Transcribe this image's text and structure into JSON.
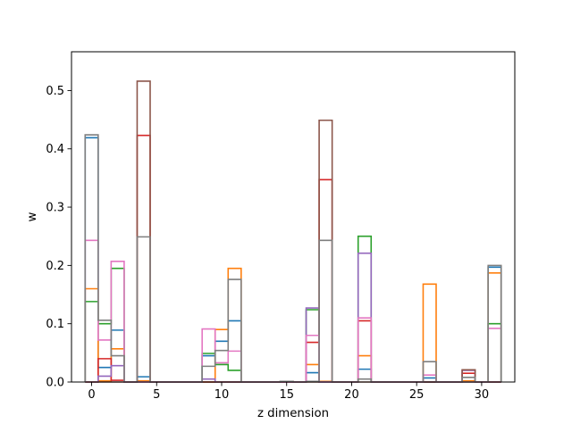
{
  "chart_data": {
    "type": "step-histogram",
    "title": "",
    "xlabel": "z dimension",
    "ylabel": "w",
    "xlim": [
      -1.55,
      32.55
    ],
    "ylim": [
      0,
      0.5665
    ],
    "xticks": [
      0,
      5,
      10,
      15,
      20,
      25,
      30
    ],
    "yticks": [
      0.0,
      0.1,
      0.2,
      0.3,
      0.4,
      0.5
    ],
    "ytick_labels": [
      "0.0",
      "0.1",
      "0.2",
      "0.3",
      "0.4",
      "0.5"
    ],
    "grid": false,
    "bins": [
      0,
      1,
      2,
      4,
      9,
      10,
      11,
      15,
      17,
      18,
      21,
      26,
      29,
      31
    ],
    "bin_width": 1,
    "series": [
      {
        "color": "#1f77b4",
        "values": {
          "0": 0.419,
          "1": 0.025,
          "2": 0.089,
          "4": 0.009,
          "9": 0.045,
          "10": 0.07,
          "11": 0.105,
          "17": 0.016,
          "21": 0.022,
          "26": 0.007,
          "31": 0.197
        }
      },
      {
        "color": "#ff7f0e",
        "values": {
          "0": 0.16,
          "1": 0.002,
          "2": 0.057,
          "4": 0.002,
          "10": 0.09,
          "11": 0.195,
          "15": 0.001,
          "17": 0.03,
          "18": 0.001,
          "21": 0.045,
          "26": 0.168,
          "29": 0.002,
          "31": 0.187
        }
      },
      {
        "color": "#2ca02c",
        "values": {
          "0": 0.138,
          "1": 0.1,
          "2": 0.195,
          "9": 0.049,
          "10": 0.03,
          "11": 0.02,
          "17": 0.124,
          "21": 0.25,
          "31": 0.1
        }
      },
      {
        "color": "#d62728",
        "values": {
          "1": 0.04,
          "2": 0.003,
          "4": 0.423,
          "17": 0.068,
          "18": 0.347,
          "21": 0.105,
          "29": 0.015
        }
      },
      {
        "color": "#9467bd",
        "values": {
          "1": 0.01,
          "2": 0.028,
          "9": 0.005,
          "17": 0.127,
          "21": 0.221,
          "29": 0.02
        }
      },
      {
        "color": "#8c564b",
        "values": {
          "4": 0.516,
          "18": 0.449,
          "29": 0.021
        }
      },
      {
        "color": "#e377c2",
        "values": {
          "0": 0.243,
          "1": 0.072,
          "2": 0.207,
          "9": 0.091,
          "10": 0.033,
          "11": 0.053,
          "17": 0.08,
          "21": 0.11,
          "26": 0.012,
          "31": 0.092
        }
      },
      {
        "color": "#7f7f7f",
        "values": {
          "0": 0.424,
          "1": 0.106,
          "2": 0.045,
          "4": 0.249,
          "9": 0.027,
          "10": 0.054,
          "11": 0.176,
          "15": 0.001,
          "17": 0.001,
          "18": 0.243,
          "21": 0.005,
          "26": 0.035,
          "29": 0.008,
          "31": 0.2
        }
      }
    ]
  }
}
